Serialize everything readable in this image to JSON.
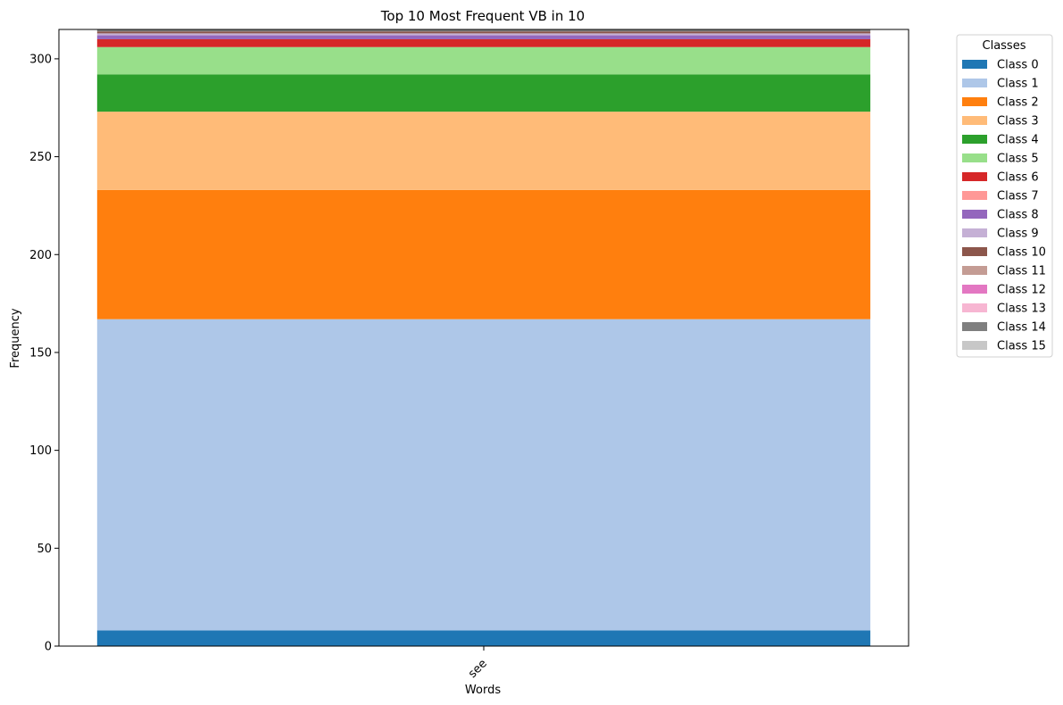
{
  "chart_data": {
    "type": "bar",
    "stacked": true,
    "title": "Top 10 Most Frequent VB in 10",
    "xlabel": "Words",
    "ylabel": "Frequency",
    "categories": [
      "see"
    ],
    "ylim": [
      0,
      315
    ],
    "yticks": [
      0,
      50,
      100,
      150,
      200,
      250,
      300
    ],
    "grid": false,
    "legend": {
      "title": "Classes",
      "placement": "outside-right-top"
    },
    "series": [
      {
        "name": "Class 0",
        "color": "#1f77b4",
        "values": [
          8
        ]
      },
      {
        "name": "Class 1",
        "color": "#aec7e8",
        "values": [
          159
        ]
      },
      {
        "name": "Class 2",
        "color": "#ff7f0e",
        "values": [
          66
        ]
      },
      {
        "name": "Class 3",
        "color": "#ffbb78",
        "values": [
          40
        ]
      },
      {
        "name": "Class 4",
        "color": "#2ca02c",
        "values": [
          19
        ]
      },
      {
        "name": "Class 5",
        "color": "#98df8a",
        "values": [
          14
        ]
      },
      {
        "name": "Class 6",
        "color": "#d62728",
        "values": [
          4
        ]
      },
      {
        "name": "Class 7",
        "color": "#ff9896",
        "values": [
          0
        ]
      },
      {
        "name": "Class 8",
        "color": "#9467bd",
        "values": [
          2
        ]
      },
      {
        "name": "Class 9",
        "color": "#c5b0d5",
        "values": [
          1
        ]
      },
      {
        "name": "Class 10",
        "color": "#8c564b",
        "values": [
          1
        ]
      },
      {
        "name": "Class 11",
        "color": "#c49c94",
        "values": [
          0
        ]
      },
      {
        "name": "Class 12",
        "color": "#e377c2",
        "values": [
          0
        ]
      },
      {
        "name": "Class 13",
        "color": "#f7b6d2",
        "values": [
          0
        ]
      },
      {
        "name": "Class 14",
        "color": "#7f7f7f",
        "values": [
          1
        ]
      },
      {
        "name": "Class 15",
        "color": "#c7c7c7",
        "values": [
          0
        ]
      }
    ]
  }
}
